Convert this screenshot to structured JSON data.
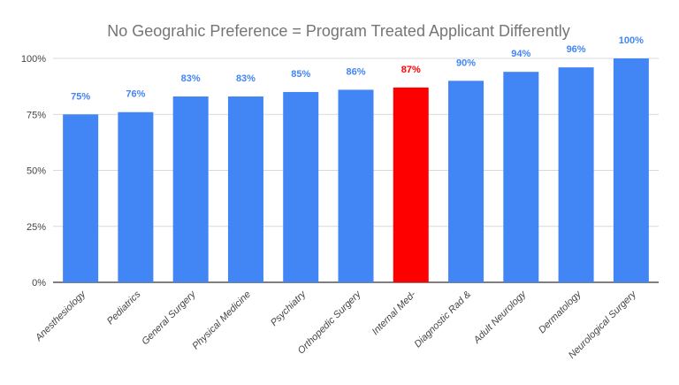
{
  "chart_data": {
    "type": "bar",
    "title": "No Geograhic Preference = Program Treated Applicant Differently",
    "xlabel": "",
    "ylabel": "",
    "categories": [
      "Anesthesiology",
      "Pediatrics",
      "General Surgery",
      "Physical Medicine",
      "Psychiatry",
      "Orthopedic Surgery",
      "Internal Med-",
      "Diagnostic Rad &",
      "Adult Neurology",
      "Dermatology",
      "Neurological Surgery"
    ],
    "values": [
      75,
      76,
      83,
      83,
      85,
      86,
      87,
      90,
      94,
      96,
      100
    ],
    "data_labels": [
      "75%",
      "76%",
      "83%",
      "83%",
      "85%",
      "86%",
      "87%",
      "90%",
      "94%",
      "96%",
      "100%"
    ],
    "highlight_index": 6,
    "ylim": [
      0,
      100
    ],
    "yticks": [
      0,
      25,
      50,
      75,
      100
    ],
    "ytick_labels": [
      "0%",
      "25%",
      "50%",
      "75%",
      "100%"
    ],
    "grid": true,
    "legend": "none",
    "colors": {
      "bar": "#4285f4",
      "highlight": "#ff0000",
      "label": "#4285f4",
      "highlight_label": "#ff0000",
      "title": "#757575"
    }
  }
}
